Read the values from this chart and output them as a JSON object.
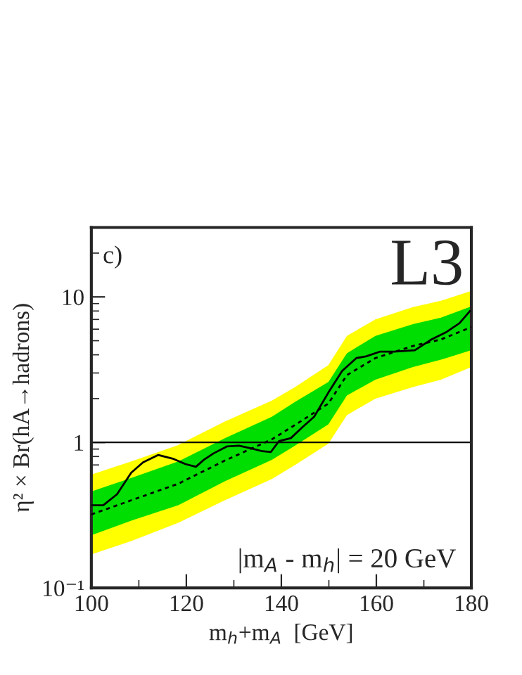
{
  "chart_data": {
    "type": "line",
    "xlabel": "m$_{h}$+m$_{A}$  [GeV]",
    "ylabel": "η² × Br(hA→hadrons)",
    "log": "y",
    "xlim": [
      100,
      180
    ],
    "xticks": [
      100,
      120,
      140,
      160,
      180
    ],
    "ylim": [
      0.1,
      30
    ],
    "yticks": [
      {
        "value": 0.1,
        "label": "10⁻¹"
      },
      1,
      10
    ],
    "grid": false,
    "legend": false,
    "ref_lines": [
      {
        "axis": "y",
        "value": 1,
        "color": "#000000",
        "line_style": "solid"
      }
    ],
    "annotations": [
      "c)",
      "L3",
      "|m$_{A}$ - m$_{h}$| = 20 GeV"
    ],
    "series": [
      {
        "color": "#ffff00",
        "x": [
          100,
          108.4,
          118.3,
          128.1,
          138,
          142.9,
          149.9,
          153.8,
          159.8,
          167.7,
          173.6,
          180
        ],
        "values": [
          null,
          null,
          null,
          null,
          null,
          null,
          null,
          null,
          null,
          null,
          null,
          null
        ],
        "lower": [
          0.17,
          0.21,
          0.28,
          0.4,
          0.56,
          0.7,
          0.98,
          1.54,
          2.0,
          2.4,
          2.7,
          3.3
        ],
        "upper": [
          0.6,
          0.74,
          0.96,
          1.39,
          1.94,
          2.4,
          3.4,
          5.4,
          7.0,
          8.5,
          9.4,
          11.0
        ]
      },
      {
        "color": "#00dd00",
        "x": [
          100,
          108.4,
          118.3,
          128.1,
          138,
          142.9,
          149.9,
          153.8,
          159.8,
          167.7,
          173.6,
          180
        ],
        "values": [
          null,
          null,
          null,
          null,
          null,
          null,
          null,
          null,
          null,
          null,
          null,
          null
        ],
        "lower": [
          0.23,
          0.29,
          0.37,
          0.54,
          0.76,
          0.95,
          1.33,
          2.1,
          2.7,
          3.3,
          3.7,
          4.3
        ],
        "upper": [
          0.46,
          0.57,
          0.74,
          1.07,
          1.5,
          1.9,
          2.6,
          4.1,
          5.4,
          6.5,
          7.2,
          8.6
        ]
      },
      {
        "color": "#000000",
        "line_style": "dotted",
        "x": [
          100,
          108.4,
          118.3,
          128.1,
          138,
          142.9,
          149.9,
          153.8,
          159.8,
          167.7,
          173.6,
          180
        ],
        "values": [
          0.32,
          0.4,
          0.52,
          0.75,
          1.05,
          1.32,
          1.85,
          2.9,
          3.8,
          4.6,
          5.1,
          6.2
        ]
      },
      {
        "color": "#000000",
        "line_style": "solid",
        "x": [
          100,
          102.5,
          105.4,
          108.4,
          110.9,
          114.1,
          117.3,
          119.8,
          122.0,
          123.7,
          125.7,
          128.6,
          131.1,
          133.6,
          136.0,
          137.8,
          139.5,
          142.0,
          144.4,
          146.9,
          149.9,
          152.8,
          155.8,
          157.8,
          160.7,
          163.7,
          168.1,
          171.6,
          174.6,
          177.5,
          179.7
        ],
        "values": [
          0.37,
          0.37,
          0.44,
          0.62,
          0.73,
          0.82,
          0.77,
          0.71,
          0.68,
          0.76,
          0.84,
          0.94,
          0.95,
          0.91,
          0.87,
          0.86,
          1.02,
          1.07,
          1.27,
          1.5,
          2.2,
          3.1,
          3.8,
          3.9,
          4.2,
          4.2,
          4.3,
          5.1,
          5.7,
          6.6,
          8.0
        ]
      }
    ]
  }
}
